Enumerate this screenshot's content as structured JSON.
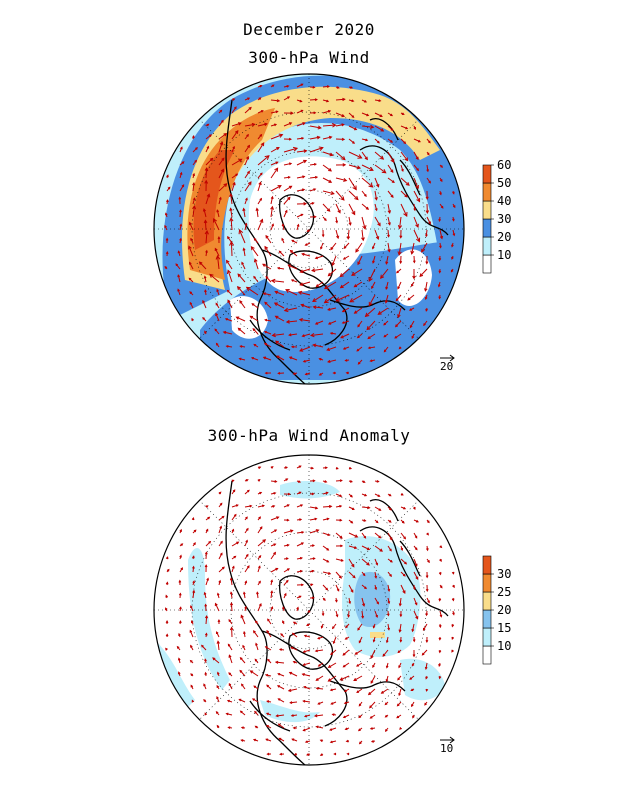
{
  "figure": {
    "title": "December 2020",
    "panels": [
      {
        "title": "300-hPa Wind",
        "colorbar": {
          "ticks": [
            "10",
            "20",
            "30",
            "40",
            "50",
            "60"
          ],
          "colors": [
            "#ffffff",
            "#bfeffb",
            "#4a90e2",
            "#f9dd8a",
            "#f08a30",
            "#e4561c"
          ]
        },
        "reference_vector": "20"
      },
      {
        "title": "300-hPa Wind Anomaly",
        "colorbar": {
          "ticks": [
            "10",
            "15",
            "20",
            "25",
            "30"
          ],
          "colors": [
            "#ffffff",
            "#bfeffb",
            "#86c3ee",
            "#f9dd8a",
            "#f08a30",
            "#e4561c"
          ]
        },
        "reference_vector": "10"
      }
    ],
    "colors": {
      "vector": "#c00000",
      "coastline": "#000000",
      "grid": "#000000"
    }
  }
}
